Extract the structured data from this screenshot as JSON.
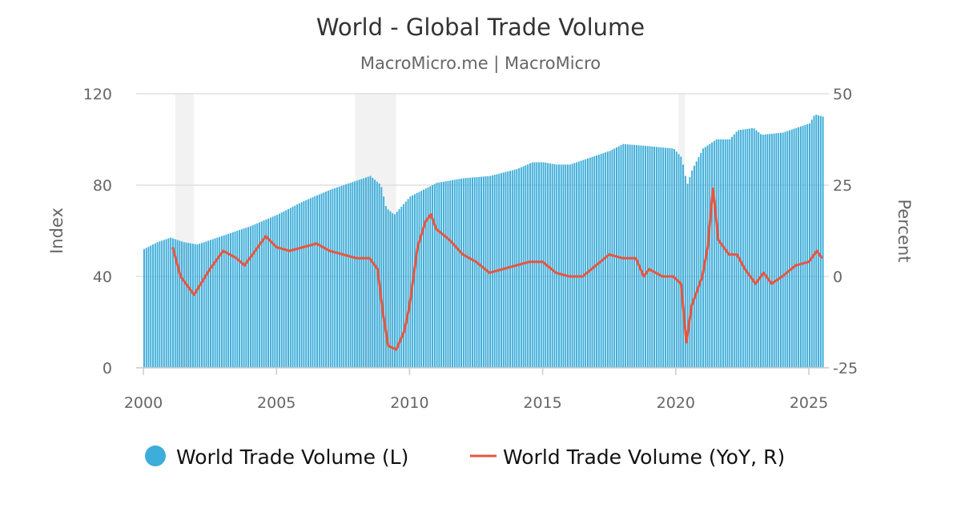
{
  "chart_data": {
    "type": "bar+line",
    "title": "World - Global Trade Volume",
    "subtitle": "MacroMicro.me | MacroMicro",
    "ylabel_left": "Index",
    "ylabel_right": "Percent",
    "xlim": [
      2000,
      2025.75
    ],
    "ylim_left": [
      0,
      120
    ],
    "ylim_right": [
      -25,
      50
    ],
    "x_ticks": [
      "2000",
      "2005",
      "2010",
      "2015",
      "2020",
      "2025"
    ],
    "y_ticks_left": [
      "0",
      "40",
      "80",
      "120"
    ],
    "y_ticks_right": [
      "-25",
      "0",
      "25",
      "50"
    ],
    "grid": true,
    "legend_position": "bottom",
    "recession_shading": [
      [
        2001.2,
        2001.9
      ],
      [
        2007.95,
        2009.5
      ],
      [
        2020.1,
        2020.35
      ]
    ],
    "colors": {
      "bars": "#3dadd9",
      "line": "#e8553f",
      "shading": "#f2f2f2",
      "grid": "#e0e0e0"
    },
    "series": [
      {
        "name": "World Trade Volume (L)",
        "type": "bar",
        "axis": "left",
        "points": [
          [
            2000.0,
            52
          ],
          [
            2000.5,
            55
          ],
          [
            2001.0,
            57
          ],
          [
            2001.5,
            55
          ],
          [
            2002.0,
            54
          ],
          [
            2002.5,
            56
          ],
          [
            2003.0,
            58
          ],
          [
            2004.0,
            62
          ],
          [
            2005.0,
            67
          ],
          [
            2006.0,
            73
          ],
          [
            2007.0,
            78
          ],
          [
            2008.0,
            82
          ],
          [
            2008.5,
            84
          ],
          [
            2008.9,
            80
          ],
          [
            2009.1,
            70
          ],
          [
            2009.4,
            67
          ],
          [
            2010.0,
            75
          ],
          [
            2011.0,
            81
          ],
          [
            2012.0,
            83
          ],
          [
            2013.0,
            84
          ],
          [
            2014.0,
            87
          ],
          [
            2014.6,
            90
          ],
          [
            2015.0,
            90
          ],
          [
            2015.5,
            89
          ],
          [
            2016.0,
            89
          ],
          [
            2017.0,
            93
          ],
          [
            2017.5,
            95
          ],
          [
            2018.0,
            98
          ],
          [
            2019.0,
            97
          ],
          [
            2019.9,
            96
          ],
          [
            2020.2,
            92
          ],
          [
            2020.4,
            80
          ],
          [
            2020.6,
            87
          ],
          [
            2021.0,
            96
          ],
          [
            2021.5,
            100
          ],
          [
            2022.0,
            100
          ],
          [
            2022.3,
            104
          ],
          [
            2022.9,
            105
          ],
          [
            2023.2,
            102
          ],
          [
            2024.0,
            103
          ],
          [
            2024.5,
            105
          ],
          [
            2025.0,
            107
          ],
          [
            2025.2,
            111
          ],
          [
            2025.5,
            110
          ]
        ]
      },
      {
        "name": "World Trade Volume (YoY, R)",
        "type": "line",
        "axis": "right",
        "points": [
          [
            2001.1,
            8
          ],
          [
            2001.4,
            0
          ],
          [
            2001.9,
            -5
          ],
          [
            2002.5,
            2
          ],
          [
            2003.0,
            7
          ],
          [
            2003.5,
            5
          ],
          [
            2003.8,
            3
          ],
          [
            2004.2,
            7
          ],
          [
            2004.6,
            11
          ],
          [
            2005.0,
            8
          ],
          [
            2005.5,
            7
          ],
          [
            2006.0,
            8
          ],
          [
            2006.5,
            9
          ],
          [
            2007.0,
            7
          ],
          [
            2007.5,
            6
          ],
          [
            2008.0,
            5
          ],
          [
            2008.5,
            5
          ],
          [
            2008.8,
            2
          ],
          [
            2009.0,
            -10
          ],
          [
            2009.2,
            -19
          ],
          [
            2009.5,
            -20
          ],
          [
            2009.8,
            -15
          ],
          [
            2010.0,
            -8
          ],
          [
            2010.3,
            8
          ],
          [
            2010.6,
            15
          ],
          [
            2010.8,
            17
          ],
          [
            2011.0,
            13
          ],
          [
            2011.5,
            10
          ],
          [
            2012.0,
            6
          ],
          [
            2012.5,
            4
          ],
          [
            2013.0,
            1
          ],
          [
            2013.5,
            2
          ],
          [
            2014.0,
            3
          ],
          [
            2014.5,
            4
          ],
          [
            2015.0,
            4
          ],
          [
            2015.5,
            1
          ],
          [
            2016.0,
            0
          ],
          [
            2016.5,
            0
          ],
          [
            2017.0,
            3
          ],
          [
            2017.5,
            6
          ],
          [
            2018.0,
            5
          ],
          [
            2018.5,
            5
          ],
          [
            2018.8,
            0
          ],
          [
            2019.0,
            2
          ],
          [
            2019.5,
            0
          ],
          [
            2019.9,
            0
          ],
          [
            2020.2,
            -2
          ],
          [
            2020.4,
            -18
          ],
          [
            2020.6,
            -8
          ],
          [
            2021.0,
            0
          ],
          [
            2021.2,
            8
          ],
          [
            2021.4,
            24
          ],
          [
            2021.6,
            10
          ],
          [
            2022.0,
            6
          ],
          [
            2022.3,
            6
          ],
          [
            2022.6,
            2
          ],
          [
            2023.0,
            -2
          ],
          [
            2023.3,
            1
          ],
          [
            2023.6,
            -2
          ],
          [
            2024.0,
            0
          ],
          [
            2024.5,
            3
          ],
          [
            2025.0,
            4
          ],
          [
            2025.3,
            7
          ],
          [
            2025.5,
            5
          ]
        ]
      }
    ]
  }
}
